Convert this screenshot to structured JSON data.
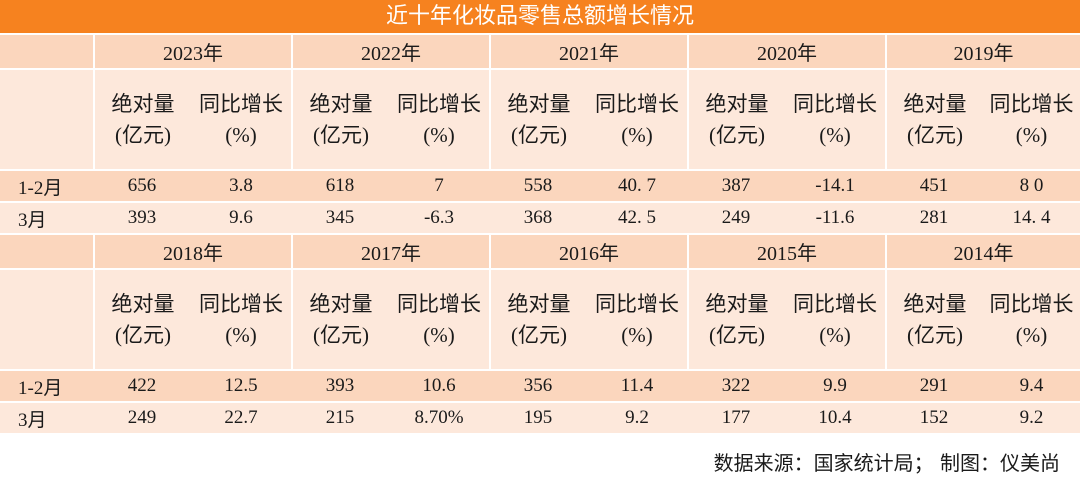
{
  "title": "近十年化妆品零售总额增长情况",
  "col_abs": [
    "绝对量",
    "(亿元)"
  ],
  "col_yoy": [
    "同比增长",
    "(%)"
  ],
  "row_labels": [
    "1-2月",
    "3月"
  ],
  "upper": {
    "years": [
      "2023年",
      "2022年",
      "2021年",
      "2020年",
      "2019年"
    ],
    "rows": [
      [
        "656",
        "3.8",
        "618",
        "7",
        "558",
        "40. 7",
        "387",
        "-14.1",
        "451",
        "8 0"
      ],
      [
        "393",
        "9.6",
        "345",
        "-6.3",
        "368",
        "42. 5",
        "249",
        "-11.6",
        "281",
        "14. 4"
      ]
    ]
  },
  "lower": {
    "years": [
      "2018年",
      "2017年",
      "2016年",
      "2015年",
      "2014年"
    ],
    "rows": [
      [
        "422",
        "12.5",
        "393",
        "10.6",
        "356",
        "11.4",
        "322",
        "9.9",
        "291",
        "9.4"
      ],
      [
        "249",
        "22.7",
        "215",
        "8.70%",
        "195",
        "9.2",
        "177",
        "10.4",
        "152",
        "9.2"
      ]
    ]
  },
  "footer": "数据来源：国家统计局；    制图：仪美尚"
}
